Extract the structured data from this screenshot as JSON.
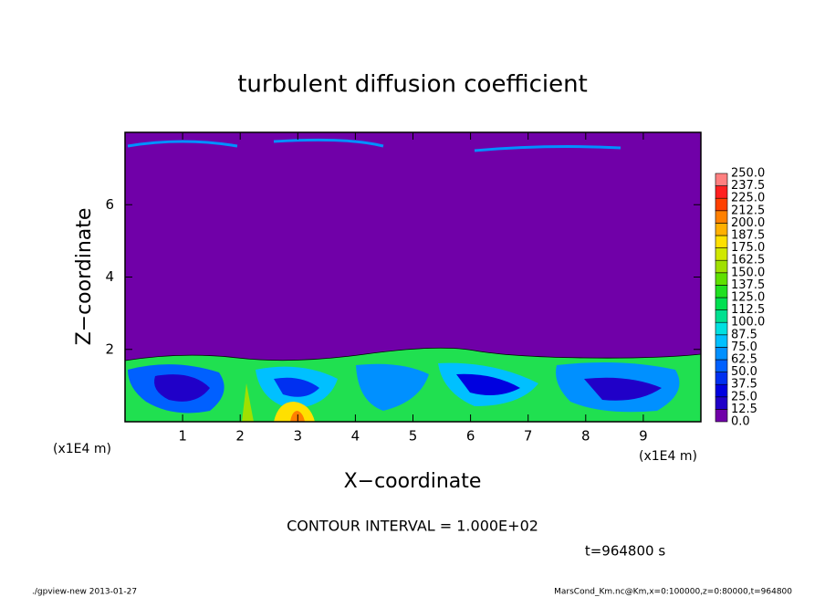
{
  "chart_data": {
    "type": "contour",
    "title": "turbulent diffusion coefficient",
    "xlabel": "X−coordinate",
    "ylabel": "Z−coordinate",
    "x_unit_left": "(x1E4 m)",
    "x_unit_right": "(x1E4 m)",
    "xlim": [
      0,
      10
    ],
    "xticks": [
      1,
      2,
      3,
      4,
      5,
      6,
      7,
      8,
      9
    ],
    "ylim": [
      0,
      8
    ],
    "yticks": [
      2,
      4,
      6
    ],
    "contour_interval": "CONTOUR INTERVAL = 1.000E+02",
    "time_label": "t=964800 s",
    "footer_left": "./gpview-new  2013-01-27",
    "footer_right": "MarsCond_Km.nc@Km,x=0:100000,z=0:80000,t=964800",
    "colorbar": {
      "levels": [
        {
          "value": 0,
          "label": "0.0"
        },
        {
          "value": 12.5,
          "label": "12.5"
        },
        {
          "value": 25,
          "label": "25.0"
        },
        {
          "value": 37.5,
          "label": "37.5"
        },
        {
          "value": 50,
          "label": "50.0"
        },
        {
          "value": 62.5,
          "label": "62.5"
        },
        {
          "value": 75,
          "label": "75.0"
        },
        {
          "value": 87.5,
          "label": "87.5"
        },
        {
          "value": 100,
          "label": "100.0"
        },
        {
          "value": 112.5,
          "label": "112.5"
        },
        {
          "value": 125,
          "label": "125.0"
        },
        {
          "value": 137.5,
          "label": "137.5"
        },
        {
          "value": 150,
          "label": "150.0"
        },
        {
          "value": 162.5,
          "label": "162.5"
        },
        {
          "value": 175,
          "label": "175.0"
        },
        {
          "value": 187.5,
          "label": "187.5"
        },
        {
          "value": 200,
          "label": "200.0"
        },
        {
          "value": 212.5,
          "label": "212.5"
        },
        {
          "value": 225,
          "label": "225.0"
        },
        {
          "value": 237.5,
          "label": "237.5"
        },
        {
          "value": 250,
          "label": "250.0"
        }
      ],
      "colors": [
        "#7000a8",
        "#2000c8",
        "#0000e0",
        "#0030f0",
        "#0060ff",
        "#0090ff",
        "#00c0ff",
        "#00e0e0",
        "#00e090",
        "#00e050",
        "#20e020",
        "#60e000",
        "#a0e000",
        "#d0e800",
        "#ffe000",
        "#ffb000",
        "#ff8000",
        "#ff4000",
        "#ff2020",
        "#ff8080"
      ]
    }
  }
}
